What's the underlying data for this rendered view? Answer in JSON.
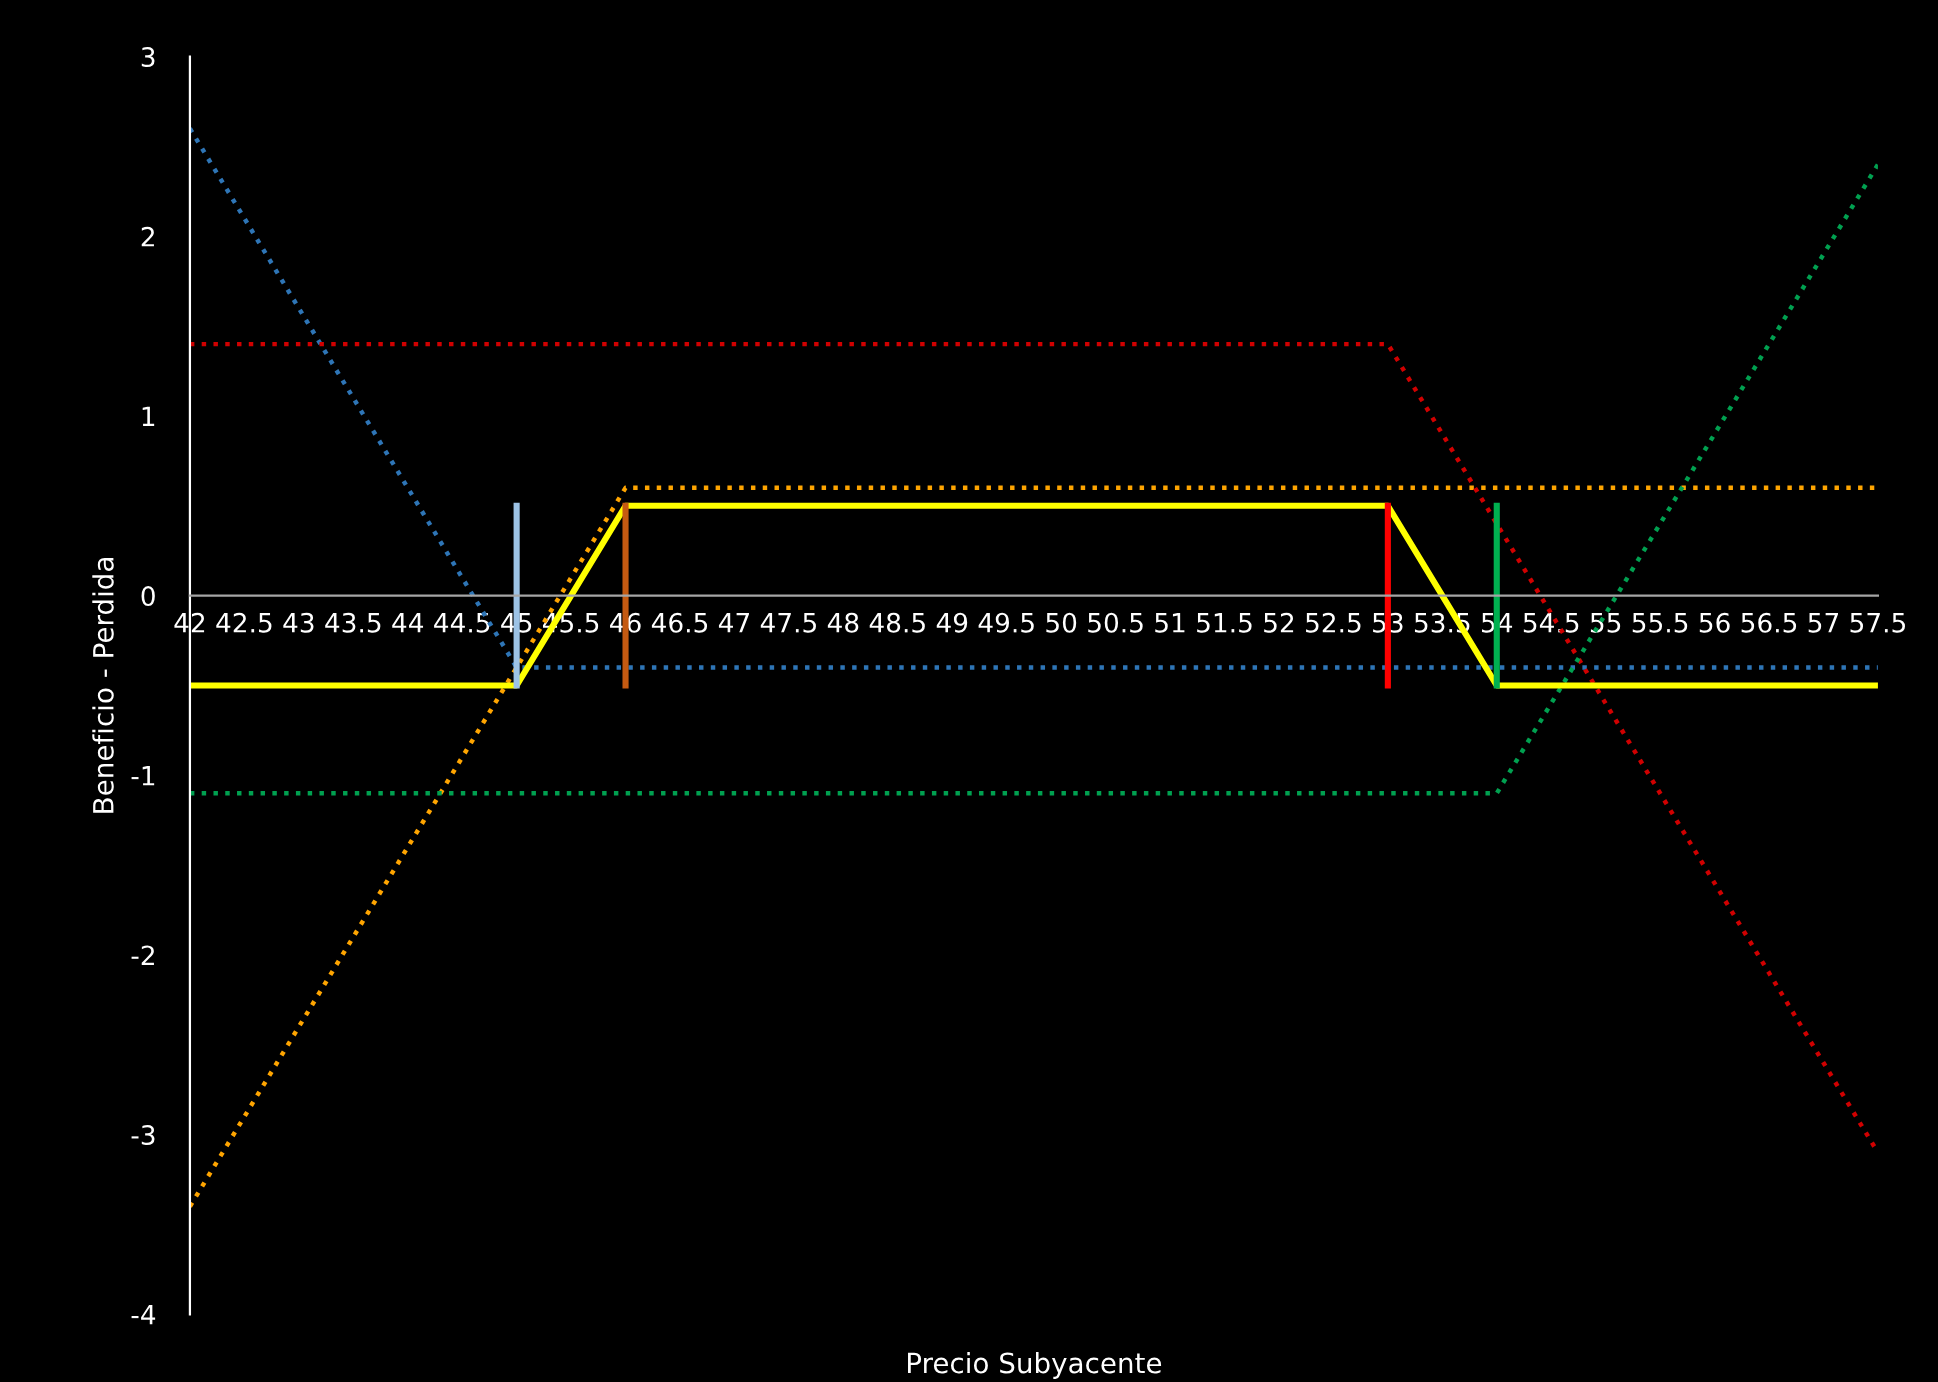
{
  "chart_data": {
    "type": "line",
    "xlabel": "Precio Subyacente",
    "ylabel": "Beneficio - Perdida",
    "x": [
      42,
      42.5,
      43,
      43.5,
      44,
      44.5,
      45,
      45.5,
      46,
      46.5,
      47,
      47.5,
      48,
      48.5,
      49,
      49.5,
      50,
      50.5,
      51,
      51.5,
      52,
      52.5,
      53,
      53.5,
      54,
      54.5,
      55,
      55.5,
      56,
      56.5,
      57,
      57.5
    ],
    "xlim": [
      42,
      57.5
    ],
    "xticks": [
      42,
      42.5,
      43,
      43.5,
      44,
      44.5,
      45,
      45.5,
      46,
      46.5,
      47,
      47.5,
      48,
      48.5,
      49,
      49.5,
      50,
      50.5,
      51,
      51.5,
      52,
      52.5,
      53,
      53.5,
      54,
      54.5,
      55,
      55.5,
      56,
      56.5,
      57,
      57.5
    ],
    "ylim": [
      -4,
      3
    ],
    "yticks": [
      -4,
      -3,
      -2,
      -1,
      0,
      1,
      2,
      3
    ],
    "series": [
      {
        "color": "#2e75b6",
        "line_style": "dotted",
        "values": [
          2.6,
          2.1,
          1.6,
          1.1,
          0.6,
          0.1,
          -0.4,
          -0.4,
          -0.4,
          -0.4,
          -0.4,
          -0.4,
          -0.4,
          -0.4,
          -0.4,
          -0.4,
          -0.4,
          -0.4,
          -0.4,
          -0.4,
          -0.4,
          -0.4,
          -0.4,
          -0.4,
          -0.4,
          -0.4,
          -0.4,
          -0.4,
          -0.4,
          -0.4,
          -0.4,
          -0.4
        ]
      },
      {
        "color": "#ffa500",
        "line_style": "dotted",
        "values": [
          -3.4,
          -2.9,
          -2.4,
          -1.9,
          -1.4,
          -0.9,
          -0.4,
          0.1,
          0.6,
          0.6,
          0.6,
          0.6,
          0.6,
          0.6,
          0.6,
          0.6,
          0.6,
          0.6,
          0.6,
          0.6,
          0.6,
          0.6,
          0.6,
          0.6,
          0.6,
          0.6,
          0.6,
          0.6,
          0.6,
          0.6,
          0.6,
          0.6
        ]
      },
      {
        "color": "#d00000",
        "line_style": "dotted",
        "values": [
          1.4,
          1.4,
          1.4,
          1.4,
          1.4,
          1.4,
          1.4,
          1.4,
          1.4,
          1.4,
          1.4,
          1.4,
          1.4,
          1.4,
          1.4,
          1.4,
          1.4,
          1.4,
          1.4,
          1.4,
          1.4,
          1.4,
          1.4,
          0.9,
          0.4,
          -0.1,
          -0.6,
          -1.1,
          -1.6,
          -2.1,
          -2.6,
          -3.1
        ]
      },
      {
        "color": "#00a050",
        "line_style": "dotted",
        "values": [
          -1.1,
          -1.1,
          -1.1,
          -1.1,
          -1.1,
          -1.1,
          -1.1,
          -1.1,
          -1.1,
          -1.1,
          -1.1,
          -1.1,
          -1.1,
          -1.1,
          -1.1,
          -1.1,
          -1.1,
          -1.1,
          -1.1,
          -1.1,
          -1.1,
          -1.1,
          -1.1,
          -1.1,
          -1.1,
          -0.6,
          -0.1,
          0.4,
          0.9,
          1.4,
          1.9,
          2.4
        ]
      },
      {
        "color": "#ffff00",
        "line_style": "solid",
        "values": [
          -0.5,
          -0.5,
          -0.5,
          -0.5,
          -0.5,
          -0.5,
          -0.5,
          0,
          0.5,
          0.5,
          0.5,
          0.5,
          0.5,
          0.5,
          0.5,
          0.5,
          0.5,
          0.5,
          0.5,
          0.5,
          0.5,
          0.5,
          0.5,
          0,
          -0.5,
          -0.5,
          -0.5,
          -0.5,
          -0.5,
          -0.5,
          -0.5,
          -0.5
        ]
      },
      {
        "color": "#9dc3e6",
        "line_style": "solid",
        "x": [
          45,
          45
        ],
        "values": [
          -0.5,
          0.5
        ]
      },
      {
        "color": "#c55a11",
        "line_style": "solid",
        "x": [
          46,
          46
        ],
        "values": [
          -0.5,
          0.5
        ]
      },
      {
        "color": "#ff0000",
        "line_style": "solid",
        "x": [
          53,
          53
        ],
        "values": [
          -0.5,
          0.5
        ]
      },
      {
        "color": "#00b050",
        "line_style": "solid",
        "x": [
          54,
          54
        ],
        "values": [
          -0.5,
          0.5
        ]
      }
    ]
  }
}
